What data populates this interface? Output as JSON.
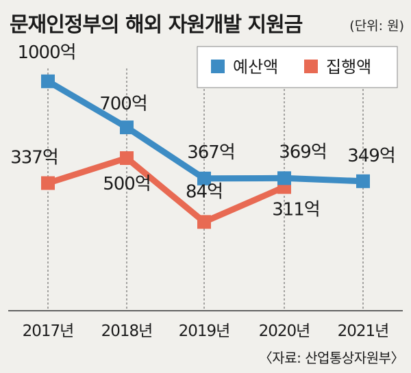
{
  "chart_data": {
    "type": "line",
    "title": "문재인정부의 해외 자원개발 지원금",
    "unit": "(단위: 원)",
    "categories": [
      "2017년",
      "2018년",
      "2019년",
      "2020년",
      "2021년"
    ],
    "series": [
      {
        "name": "예산액",
        "color": "#3d8cc4",
        "values": [
          1000,
          700,
          367,
          369,
          349
        ],
        "labels": [
          "1000억",
          "700억",
          "367억",
          "369억",
          "349억"
        ]
      },
      {
        "name": "집행액",
        "color": "#e86a53",
        "values": [
          337,
          500,
          84,
          311,
          null
        ],
        "labels": [
          "337억",
          "500억",
          "84억",
          "311억",
          null
        ]
      }
    ],
    "grid": "vertical-dashed",
    "legend": "top-right",
    "source": "〈자료: 산업통상자원부〉"
  }
}
